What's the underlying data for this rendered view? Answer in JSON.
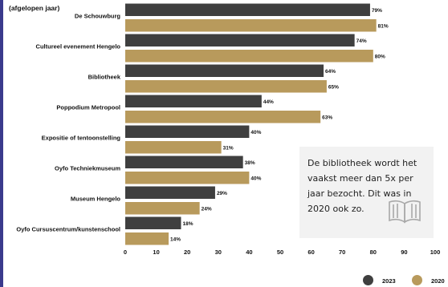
{
  "chart_data": {
    "type": "bar",
    "orientation": "horizontal",
    "title_fragment": "(afgelopen jaar)",
    "categories": [
      "De Schouwburg",
      "Cultureel evenement Hengelo",
      "Bibliotheek",
      "Poppodium Metropool",
      "Expositie of tentoonstelling",
      "Oyfo Techniekmuseum",
      "Museum Hengelo",
      "Oyfo Cursuscentrum/kunstenschool"
    ],
    "series": [
      {
        "name": "2023",
        "values": [
          79,
          74,
          64,
          44,
          40,
          38,
          29,
          18
        ],
        "labels": [
          "79%",
          "74%",
          "64%",
          "44%",
          "40%",
          "38%",
          "29%",
          "18%"
        ]
      },
      {
        "name": "2020",
        "values": [
          81,
          80,
          65,
          63,
          31,
          40,
          24,
          14
        ],
        "labels": [
          "81%",
          "80%",
          "65%",
          "63%",
          "31%",
          "40%",
          "24%",
          "14%"
        ]
      }
    ],
    "xticks": [
      "0",
      "10",
      "20",
      "30",
      "40",
      "50",
      "60",
      "70",
      "80",
      "90",
      "100"
    ],
    "xlim": [
      0,
      100
    ],
    "grid": false,
    "legend_position": "bottom-right"
  },
  "colors": {
    "series_2023": "#3f3f3f",
    "series_2020": "#b89a5c",
    "left_strip": "#3a3a8c",
    "note_bg": "#f2f2f2"
  },
  "note": {
    "text": "De bibliotheek wordt het vaakst meer dan 5x per jaar bezocht. Dit was in 2020 ook zo.",
    "icon": "open-book-icon"
  }
}
